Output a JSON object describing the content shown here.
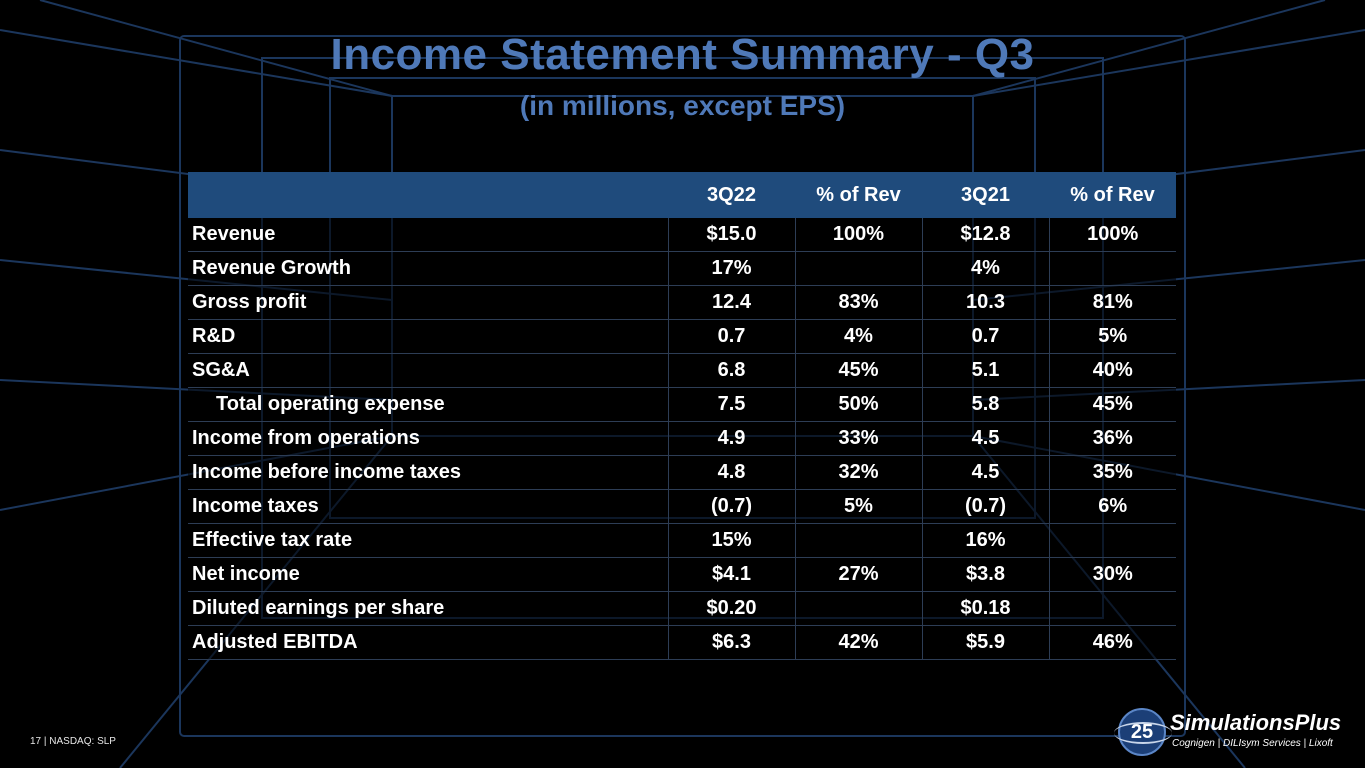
{
  "slide": {
    "title": "Income Statement Summary - Q3",
    "subtitle": "(in millions, except EPS)"
  },
  "table": {
    "headers": [
      "",
      "3Q22",
      "% of Rev",
      "3Q21",
      "% of Rev"
    ],
    "rows": [
      {
        "label": "Revenue",
        "indent": false,
        "values": [
          "$15.0",
          "100%",
          "$12.8",
          "100%"
        ]
      },
      {
        "label": "Revenue Growth",
        "indent": false,
        "values": [
          "17%",
          "",
          "4%",
          ""
        ]
      },
      {
        "label": "Gross profit",
        "indent": false,
        "values": [
          "12.4",
          "83%",
          "10.3",
          "81%"
        ]
      },
      {
        "label": "R&D",
        "indent": false,
        "values": [
          "0.7",
          "4%",
          "0.7",
          "5%"
        ]
      },
      {
        "label": "SG&A",
        "indent": false,
        "values": [
          "6.8",
          "45%",
          "5.1",
          "40%"
        ]
      },
      {
        "label": "Total operating expense",
        "indent": true,
        "values": [
          "7.5",
          "50%",
          "5.8",
          "45%"
        ]
      },
      {
        "label": "Income from operations",
        "indent": false,
        "values": [
          "4.9",
          "33%",
          "4.5",
          "36%"
        ]
      },
      {
        "label": "Income  before income taxes",
        "indent": false,
        "values": [
          "4.8",
          "32%",
          "4.5",
          "35%"
        ]
      },
      {
        "label": "Income taxes",
        "indent": false,
        "values": [
          "(0.7)",
          "5%",
          "(0.7)",
          "6%"
        ]
      },
      {
        "label": "Effective tax rate",
        "indent": false,
        "values": [
          "15%",
          "",
          "16%",
          ""
        ]
      },
      {
        "label": "Net income",
        "indent": false,
        "values": [
          "$4.1",
          "27%",
          "$3.8",
          "30%"
        ]
      },
      {
        "label": "Diluted earnings per share",
        "indent": false,
        "values": [
          "$0.20",
          "",
          "$0.18",
          ""
        ]
      },
      {
        "label": "Adjusted EBITDA",
        "indent": false,
        "values": [
          "$6.3",
          "42%",
          "$5.9",
          "46%"
        ]
      }
    ]
  },
  "footer": {
    "text": "17 | NASDAQ: SLP"
  },
  "logo": {
    "badge": "25",
    "name": "SimulationsPlus",
    "subline": "Cognigen | DILIsym Services | Lixoft"
  },
  "colors": {
    "title": "#4f79b8",
    "header_fill": "#1f4b7c",
    "grid_lines": "#1e3a63",
    "background": "#000000"
  }
}
